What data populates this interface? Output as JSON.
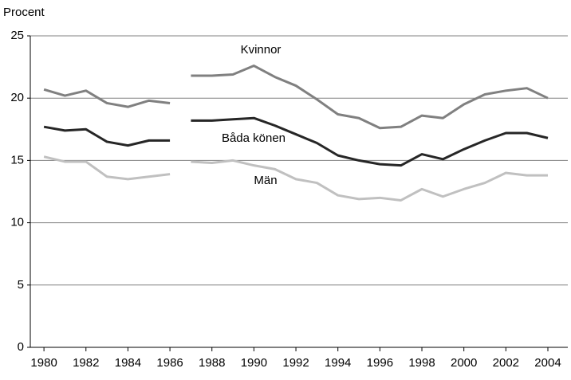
{
  "chart_data": {
    "type": "line",
    "y_label": "Procent",
    "x": [
      1980,
      1981,
      1982,
      1983,
      1984,
      1985,
      1986,
      1987,
      1988,
      1989,
      1990,
      1991,
      1992,
      1993,
      1994,
      1995,
      1996,
      1997,
      1998,
      1999,
      2000,
      2001,
      2002,
      2003,
      2004
    ],
    "break_after": 1986,
    "series": [
      {
        "name": "Kvinnor",
        "color": "#808080",
        "values": [
          20.7,
          20.2,
          20.6,
          19.6,
          19.3,
          19.8,
          19.6,
          21.8,
          21.8,
          21.9,
          22.6,
          21.7,
          21.0,
          19.9,
          18.7,
          18.4,
          17.6,
          17.7,
          18.6,
          18.4,
          19.5,
          20.3,
          20.6,
          20.8,
          20.0
        ]
      },
      {
        "name": "Båda könen",
        "color": "#262626",
        "values": [
          17.7,
          17.4,
          17.5,
          16.5,
          16.2,
          16.6,
          16.6,
          18.2,
          18.2,
          18.3,
          18.4,
          17.8,
          17.1,
          16.4,
          15.4,
          15.0,
          14.7,
          14.6,
          15.5,
          15.1,
          15.9,
          16.6,
          17.2,
          17.2,
          16.8
        ]
      },
      {
        "name": "Män",
        "color": "#c0c0c0",
        "values": [
          15.3,
          14.9,
          14.9,
          13.7,
          13.5,
          13.7,
          13.9,
          14.9,
          14.8,
          15.0,
          14.6,
          14.3,
          13.5,
          13.2,
          12.2,
          11.9,
          12.0,
          11.8,
          12.7,
          12.1,
          12.7,
          13.2,
          14.0,
          13.8,
          13.8
        ]
      }
    ],
    "xlim": [
      1979.35,
      2004.95
    ],
    "xticks": [
      1980,
      1982,
      1984,
      1986,
      1988,
      1990,
      1992,
      1994,
      1996,
      1998,
      2000,
      2002,
      2004
    ],
    "ylim": [
      0,
      25
    ],
    "yticks": [
      0,
      5,
      10,
      15,
      20,
      25
    ],
    "grid": true
  }
}
